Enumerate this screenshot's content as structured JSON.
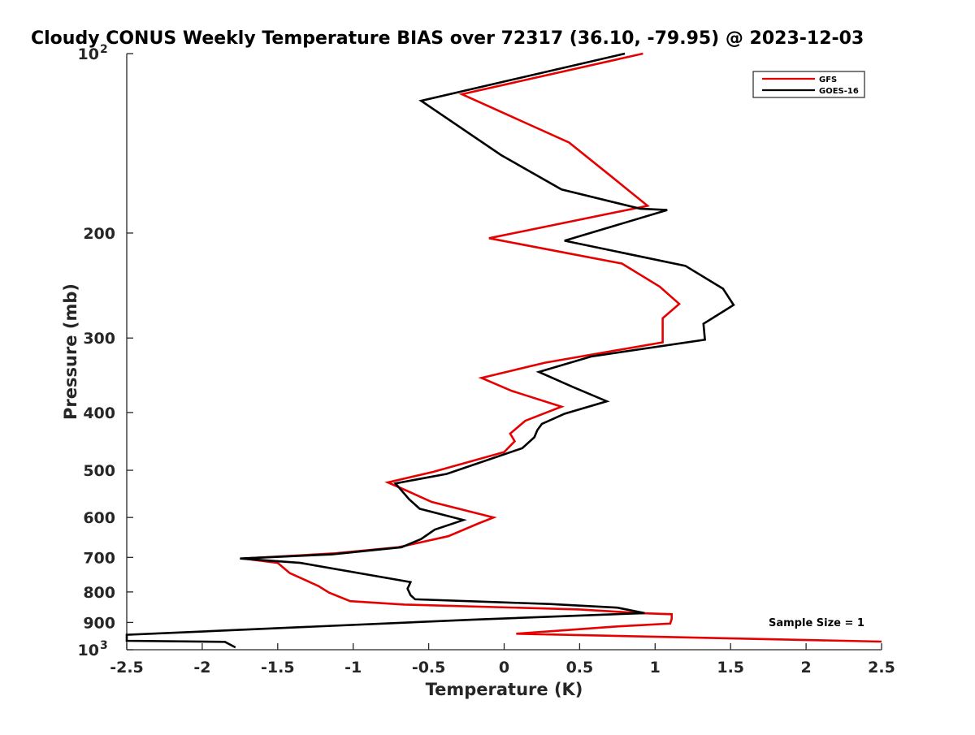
{
  "chart_data": {
    "type": "line",
    "title": "Cloudy CONUS Weekly Temperature BIAS over 72317 (36.10, -79.95) @ 2023-12-03",
    "xlabel": "Temperature (K)",
    "ylabel": "Pressure (mb)",
    "xlim": [
      -2.5,
      2.5
    ],
    "ylim": [
      100,
      1000
    ],
    "y_scale": "log",
    "y_reversed": true,
    "grid": false,
    "legend_position": "top-right",
    "x_ticks": [
      {
        "value": -2.5,
        "label": "-2.5"
      },
      {
        "value": -2,
        "label": "-2"
      },
      {
        "value": -1.5,
        "label": "-1.5"
      },
      {
        "value": -1,
        "label": "-1"
      },
      {
        "value": -0.5,
        "label": "-0.5"
      },
      {
        "value": 0,
        "label": "0"
      },
      {
        "value": 0.5,
        "label": "0.5"
      },
      {
        "value": 1,
        "label": "1"
      },
      {
        "value": 1.5,
        "label": "1.5"
      },
      {
        "value": 2,
        "label": "2"
      },
      {
        "value": 2.5,
        "label": "2.5"
      }
    ],
    "y_ticks": [
      {
        "value": 100,
        "base": "10",
        "exp": "2"
      },
      {
        "value": 200,
        "label": "200"
      },
      {
        "value": 300,
        "label": "300"
      },
      {
        "value": 400,
        "label": "400"
      },
      {
        "value": 500,
        "label": "500"
      },
      {
        "value": 600,
        "label": "600"
      },
      {
        "value": 700,
        "label": "700"
      },
      {
        "value": 800,
        "label": "800"
      },
      {
        "value": 900,
        "label": "900"
      },
      {
        "value": 1000,
        "base": "10",
        "exp": "3"
      }
    ],
    "annotation": "Sample Size = 1",
    "series": [
      {
        "name": "GFS",
        "color": "#e60000",
        "points": [
          [
            0.92,
            100
          ],
          [
            -0.28,
            117
          ],
          [
            0.43,
            141
          ],
          [
            0.7,
            160
          ],
          [
            0.95,
            180
          ],
          [
            -0.1,
            204
          ],
          [
            0.78,
            225
          ],
          [
            1.03,
            246
          ],
          [
            1.16,
            263
          ],
          [
            1.05,
            278
          ],
          [
            1.05,
            305
          ],
          [
            0.27,
            330
          ],
          [
            -0.15,
            350
          ],
          [
            0.05,
            368
          ],
          [
            0.38,
            391
          ],
          [
            0.14,
            413
          ],
          [
            0.04,
            434
          ],
          [
            0.07,
            447
          ],
          [
            0.0,
            466
          ],
          [
            -0.47,
            503
          ],
          [
            -0.77,
            524
          ],
          [
            -0.66,
            539
          ],
          [
            -0.48,
            565
          ],
          [
            -0.07,
            600
          ],
          [
            -0.17,
            614
          ],
          [
            -0.37,
            645
          ],
          [
            -0.7,
            673
          ],
          [
            -1.12,
            689
          ],
          [
            -1.73,
            703
          ],
          [
            -1.5,
            715
          ],
          [
            -1.42,
            744
          ],
          [
            -1.23,
            782
          ],
          [
            -1.16,
            802
          ],
          [
            -1.02,
            829
          ],
          [
            -0.66,
            840
          ],
          [
            0.5,
            856
          ],
          [
            0.9,
            868
          ],
          [
            1.11,
            872
          ],
          [
            1.11,
            888
          ],
          [
            1.1,
            904
          ],
          [
            0.75,
            914
          ],
          [
            0.08,
            940
          ],
          [
            2.5,
            969
          ]
        ]
      },
      {
        "name": "GOES-16",
        "color": "#000000",
        "points": [
          [
            0.8,
            100
          ],
          [
            -0.55,
            120
          ],
          [
            -0.02,
            148
          ],
          [
            0.38,
            169
          ],
          [
            0.9,
            182
          ],
          [
            1.08,
            183
          ],
          [
            0.4,
            206
          ],
          [
            1.2,
            227
          ],
          [
            1.45,
            248
          ],
          [
            1.52,
            264
          ],
          [
            1.32,
            284
          ],
          [
            1.33,
            302
          ],
          [
            0.58,
            322
          ],
          [
            0.23,
            342
          ],
          [
            0.45,
            362
          ],
          [
            0.68,
            383
          ],
          [
            0.4,
            402
          ],
          [
            0.25,
            418
          ],
          [
            0.22,
            428
          ],
          [
            0.2,
            440
          ],
          [
            0.12,
            459
          ],
          [
            -0.38,
            507
          ],
          [
            -0.72,
            526
          ],
          [
            -0.63,
            559
          ],
          [
            -0.56,
            580
          ],
          [
            -0.27,
            606
          ],
          [
            -0.46,
            629
          ],
          [
            -0.55,
            652
          ],
          [
            -0.68,
            673
          ],
          [
            -1.14,
            692
          ],
          [
            -1.75,
            703
          ],
          [
            -1.35,
            715
          ],
          [
            -0.62,
            770
          ],
          [
            -0.64,
            790
          ],
          [
            -0.62,
            810
          ],
          [
            -0.59,
            823
          ],
          [
            0.3,
            838
          ],
          [
            0.75,
            850
          ],
          [
            0.93,
            868
          ],
          [
            -0.2,
            890
          ],
          [
            -2.5,
            944
          ],
          [
            -2.5,
            966
          ],
          [
            -1.85,
            970
          ],
          [
            -1.78,
            991
          ]
        ]
      }
    ]
  }
}
